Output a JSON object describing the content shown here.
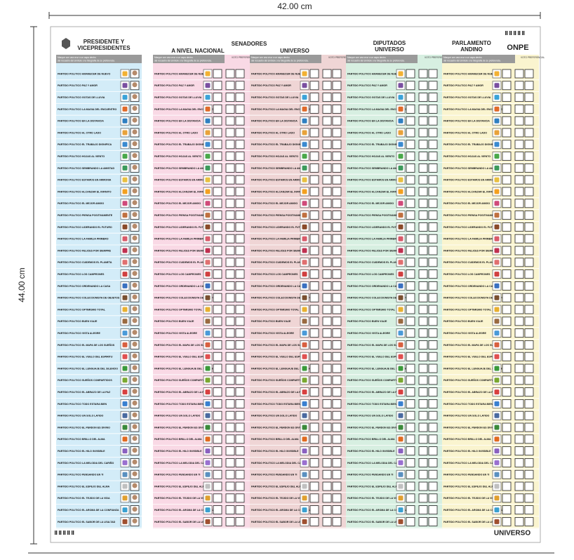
{
  "dimensions": {
    "width": "42.00 cm",
    "height": "44.00 cm"
  },
  "header": {
    "president": [
      "PRESIDENTE Y",
      "VICEPRESIDENTES"
    ],
    "senators": "SENADORES",
    "senators_national": "A NIVEL NACIONAL",
    "senators_universe": "UNIVERSO",
    "deputies": [
      "DIPUTADOS",
      "UNIVERSO"
    ],
    "andean": [
      "PARLAMENTO",
      "ANDINO"
    ],
    "logo": "ONPE"
  },
  "instruction": [
    "Marque con una cruz o un aspa dentro",
    "del recuadro del símbolo o la fotografía de su preferencia."
  ],
  "preferential": "VOTO PREFERENCIAL",
  "footer": "UNIVERSO",
  "parties": [
    "PARTIDO POLITICO AMANECER DE NUEVO",
    "PARTIDO POLITICO PAZ Y AMOR",
    "PARTIDO POLITICO GOTAS DE LLUVIA",
    "PARTIDO POLITICO LA MAGIA DEL ENCUENTRO",
    "PARTIDO POLITICO EN LA DISTANCIA",
    "PARTIDO POLITICO AL OTRO LADO",
    "PARTIDO POLITICO EL TRABAJO DIGNIFICA",
    "PARTIDO POLITICO HOJAS AL VIENTO",
    "PARTIDO POLITICO SEMBRANDO LA AMISTAD",
    "PARTIDO POLITICO ESTAMOS EN ARMONIA",
    "PARTIDO POLITICO ALCANZAR EL INFINITO",
    "PARTIDO POLITICO EL MEJOR AMIGO",
    "PARTIDO POLITICO PIENSA POSITIVAMENTE",
    "PARTIDO POLITICO LIDERANDO EL FUTURO",
    "PARTIDO POLITICO LA FAMILIA PRIMERO",
    "PARTIDO POLITICO FELICES POR SIEMPRE",
    "PARTIDO POLITICO CUIDEMOS EL PLANETA",
    "PARTIDO POLITICO LOS CAMPEONES",
    "PARTIDO POLITICO ORDENANDO LA CASA",
    "PARTIDO POLITICO COLECCIONISTA DE OBJETOS",
    "PARTIDO POLITICO OPTIMISMO TOTAL",
    "PARTIDO POLITICO BUEN VIAJE",
    "PARTIDO POLITICO VISTA ALEGRE",
    "PARTIDO POLITICO EL MAPA DE LOS SUEÑOS",
    "PARTIDO POLITICO EL VUELO DEL ESPIRITU",
    "PARTIDO POLITICO EL LENGUAJE DEL SILENCIO",
    "PARTIDO POLITICO SUEÑOS COMPARTIDOS",
    "PARTIDO POLITICO EL ABRAZO DE LA PAZ",
    "PARTIDO POLITICO TODO ESTARA BIEN",
    "PARTIDO POLITICO UN SOLO LATIDO",
    "PARTIDO POLITICO EL PERDON ES DIVINO",
    "PARTIDO POLITICO BRILLO DEL ALMA",
    "PARTIDO POLITICO EL HILO INVISIBLE",
    "PARTIDO POLITICO LA MELODIA DEL CARIÑO",
    "PARTIDO POLITICO PENSANDO EN TI",
    "PARTIDO POLITICO EL ESPEJO DEL ALMA",
    "PARTIDO POLITICO EL TEJIDO DE LA VIDA",
    "PARTIDO POLITICO EL AROMA DE LA CONFIANZA",
    "PARTIDO POLITICO EL SABOR DE LA LEALTAD"
  ]
}
